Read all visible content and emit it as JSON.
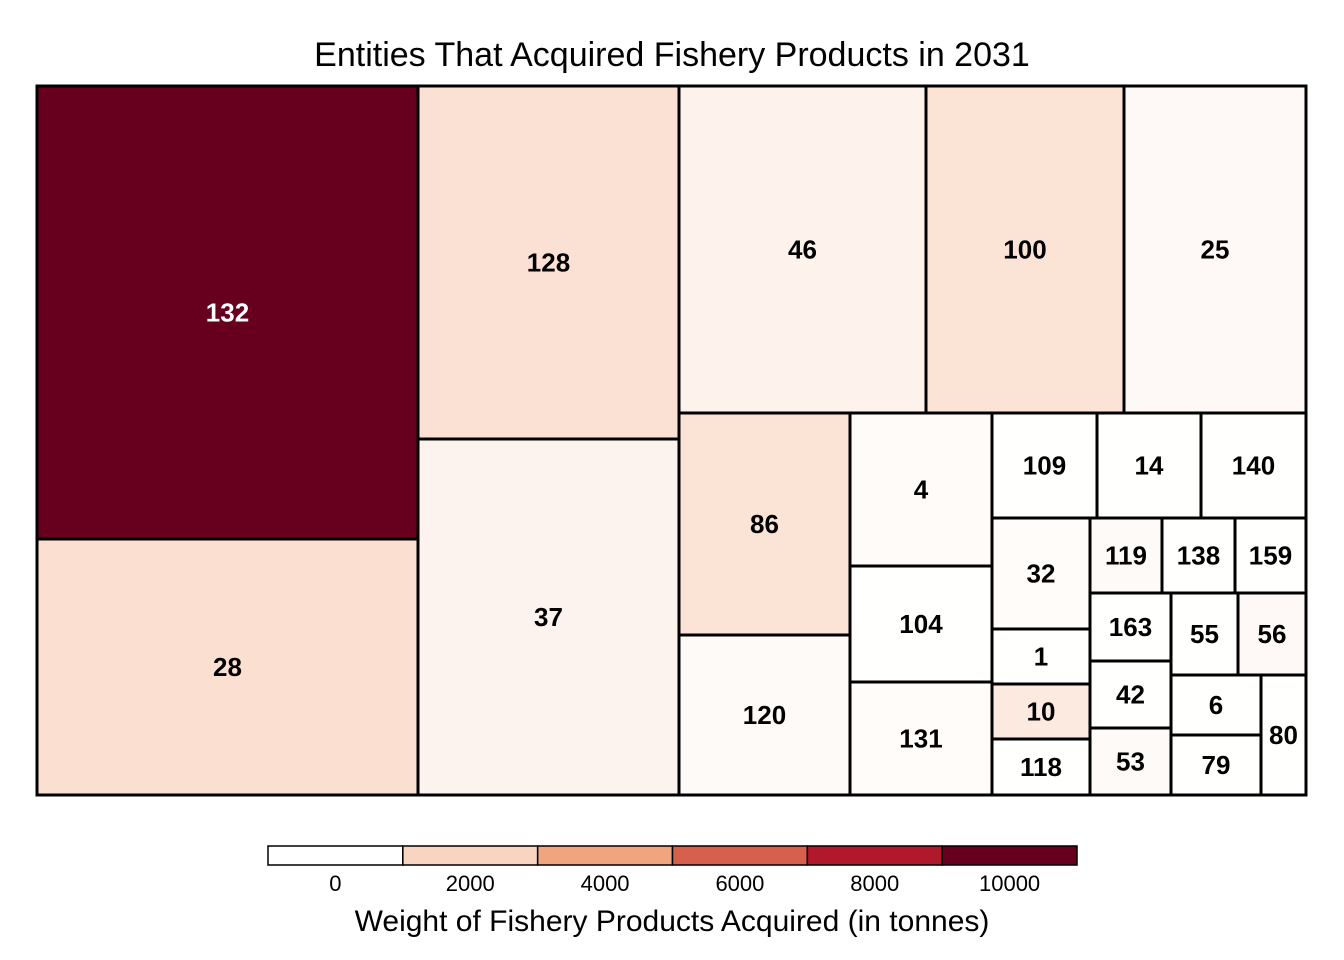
{
  "chart_data": {
    "type": "treemap",
    "title": "Entities That Acquired Fishery Products in 2031",
    "legend": {
      "title": "Weight of Fishery Products Acquired (in tonnes)",
      "ticks": [
        0,
        2000,
        4000,
        6000,
        8000,
        10000
      ],
      "tick_labels": [
        "0",
        "2000",
        "4000",
        "6000",
        "8000",
        "10000"
      ],
      "range": [
        -1000,
        11000
      ],
      "colors": [
        "#ffffff",
        "#f9d4c0",
        "#f1a57f",
        "#d7604d",
        "#b2182b",
        "#67001f"
      ],
      "placement": "bottom"
    },
    "tiles": [
      {
        "label": "132",
        "value": 10800
      },
      {
        "label": "28",
        "value": 1500
      },
      {
        "label": "128",
        "value": 1400
      },
      {
        "label": "37",
        "value": 550
      },
      {
        "label": "46",
        "value": 600
      },
      {
        "label": "100",
        "value": 1300
      },
      {
        "label": "25",
        "value": 300
      },
      {
        "label": "86",
        "value": 1300
      },
      {
        "label": "120",
        "value": 250
      },
      {
        "label": "4",
        "value": 200
      },
      {
        "label": "104",
        "value": 20
      },
      {
        "label": "131",
        "value": 150
      },
      {
        "label": "109",
        "value": 20
      },
      {
        "label": "14",
        "value": 20
      },
      {
        "label": "140",
        "value": 20
      },
      {
        "label": "32",
        "value": 150
      },
      {
        "label": "1",
        "value": 20
      },
      {
        "label": "10",
        "value": 1000
      },
      {
        "label": "118",
        "value": 20
      },
      {
        "label": "119",
        "value": 250
      },
      {
        "label": "138",
        "value": 20
      },
      {
        "label": "159",
        "value": 20
      },
      {
        "label": "163",
        "value": 20
      },
      {
        "label": "55",
        "value": 20
      },
      {
        "label": "56",
        "value": 300
      },
      {
        "label": "42",
        "value": 20
      },
      {
        "label": "53",
        "value": 250
      },
      {
        "label": "6",
        "value": 20
      },
      {
        "label": "79",
        "value": 20
      },
      {
        "label": "80",
        "value": 20
      }
    ]
  }
}
